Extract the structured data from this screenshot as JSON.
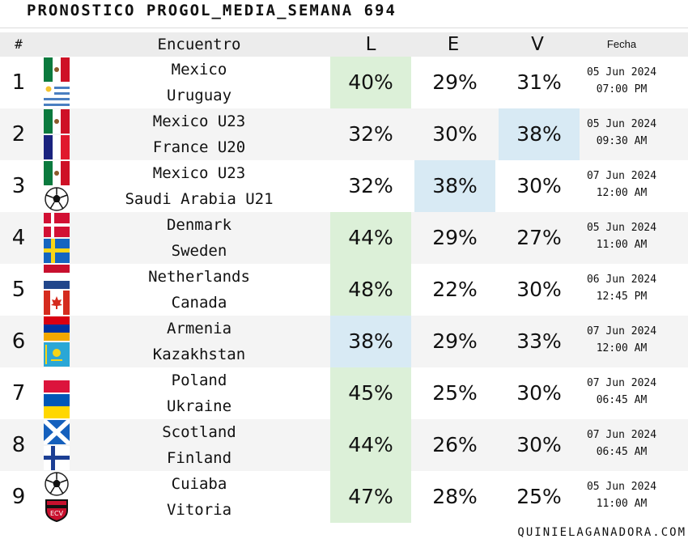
{
  "title": "PRONOSTICO PROGOL_MEDIA_SEMANA 694",
  "header": {
    "num": "#",
    "match": "Encuentro",
    "l": "L",
    "e": "E",
    "v": "V",
    "date": "Fecha"
  },
  "rows": [
    {
      "num": "1",
      "home": "Mexico",
      "away": "Uruguay",
      "l": "40%",
      "e": "29%",
      "v": "31%",
      "date": "05 Jun 2024",
      "time": "07:00 PM",
      "pick": "l",
      "pick_color": "green",
      "home_flag": "mexico-flag-icon",
      "away_flag": "uruguay-flag-icon"
    },
    {
      "num": "2",
      "home": "Mexico U23",
      "away": "France U20",
      "l": "32%",
      "e": "30%",
      "v": "38%",
      "date": "05 Jun 2024",
      "time": "09:30 AM",
      "pick": "v",
      "pick_color": "blue",
      "home_flag": "mexico-flag-icon",
      "away_flag": "france-flag-icon"
    },
    {
      "num": "3",
      "home": "Mexico U23",
      "away": "Saudi Arabia U21",
      "l": "32%",
      "e": "38%",
      "v": "30%",
      "date": "07 Jun 2024",
      "time": "12:00 AM",
      "pick": "e",
      "pick_color": "blue",
      "home_flag": "mexico-flag-icon",
      "away_flag": "soccer-ball-icon"
    },
    {
      "num": "4",
      "home": "Denmark",
      "away": "Sweden",
      "l": "44%",
      "e": "29%",
      "v": "27%",
      "date": "05 Jun 2024",
      "time": "11:00 AM",
      "pick": "l",
      "pick_color": "green",
      "home_flag": "denmark-flag-icon",
      "away_flag": "sweden-flag-icon"
    },
    {
      "num": "5",
      "home": "Netherlands",
      "away": "Canada",
      "l": "48%",
      "e": "22%",
      "v": "30%",
      "date": "06 Jun 2024",
      "time": "12:45 PM",
      "pick": "l",
      "pick_color": "green",
      "home_flag": "netherlands-flag-icon",
      "away_flag": "canada-flag-icon"
    },
    {
      "num": "6",
      "home": "Armenia",
      "away": "Kazakhstan",
      "l": "38%",
      "e": "29%",
      "v": "33%",
      "date": "07 Jun 2024",
      "time": "12:00 AM",
      "pick": "l",
      "pick_color": "blue",
      "home_flag": "armenia-flag-icon",
      "away_flag": "kazakhstan-flag-icon"
    },
    {
      "num": "7",
      "home": "Poland",
      "away": "Ukraine",
      "l": "45%",
      "e": "25%",
      "v": "30%",
      "date": "07 Jun 2024",
      "time": "06:45 AM",
      "pick": "l",
      "pick_color": "green",
      "home_flag": "poland-flag-icon",
      "away_flag": "ukraine-flag-icon"
    },
    {
      "num": "8",
      "home": "Scotland",
      "away": "Finland",
      "l": "44%",
      "e": "26%",
      "v": "30%",
      "date": "07 Jun 2024",
      "time": "06:45 AM",
      "pick": "l",
      "pick_color": "green",
      "home_flag": "scotland-flag-icon",
      "away_flag": "finland-flag-icon"
    },
    {
      "num": "9",
      "home": "Cuiaba",
      "away": "Vitoria",
      "l": "47%",
      "e": "28%",
      "v": "25%",
      "date": "05 Jun 2024",
      "time": "11:00 AM",
      "pick": "l",
      "pick_color": "green",
      "home_flag": "soccer-ball-icon",
      "away_flag": "vitoria-crest-icon"
    }
  ],
  "colors": {
    "green": "#dcf0d8",
    "blue": "#d8eaf4",
    "header_bg": "#ececec",
    "alt_row": "#f4f4f4"
  },
  "footer": "QUINIELAGANADORA.COM"
}
